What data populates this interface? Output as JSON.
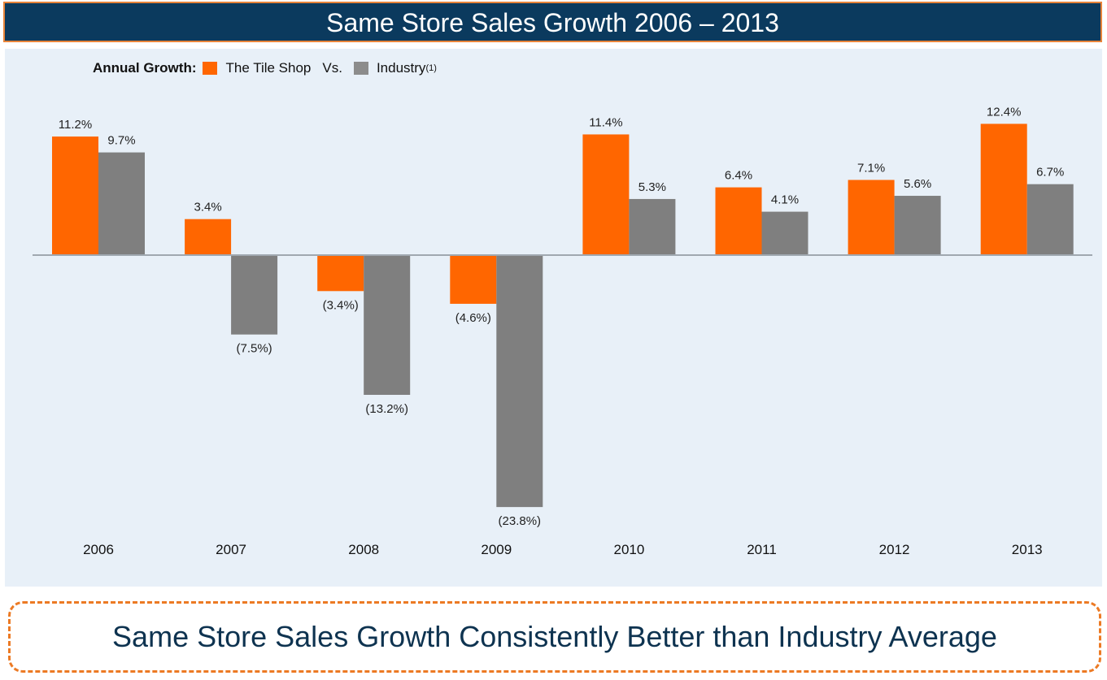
{
  "header": {
    "title": "Same Store Sales Growth 2006 –  2013"
  },
  "legend": {
    "label": "Annual Growth:",
    "series1": "The Tile Shop",
    "vs": "Vs.",
    "series2": "Industry",
    "footnote_marker": "(1)"
  },
  "footer": {
    "text": "Same Store Sales Growth Consistently Better than Industry Average"
  },
  "colors": {
    "tile_shop": "#ff6600",
    "industry": "#7f7f7f",
    "axis": "#a0a8b0",
    "title_bg": "#0b3a5e",
    "panel_bg": "#e8f0f8",
    "accent_border": "#ec7a24"
  },
  "chart_data": {
    "type": "bar",
    "title": "Same Store Sales Growth 2006 –  2013",
    "xlabel": "",
    "ylabel": "",
    "categories": [
      "2006",
      "2007",
      "2008",
      "2009",
      "2010",
      "2011",
      "2012",
      "2013"
    ],
    "series": [
      {
        "name": "The Tile Shop",
        "values": [
          11.2,
          3.4,
          -3.4,
          -4.6,
          11.4,
          6.4,
          7.1,
          12.4
        ],
        "labels": [
          "11.2%",
          "3.4%",
          "(3.4%)",
          "(4.6%)",
          "11.4%",
          "6.4%",
          "7.1%",
          "12.4%"
        ]
      },
      {
        "name": "Industry",
        "values": [
          9.7,
          -7.5,
          -13.2,
          -23.8,
          5.3,
          4.1,
          5.6,
          6.7
        ],
        "labels": [
          "9.7%",
          "(7.5%)",
          "(13.2%)",
          "(23.8%)",
          "5.3%",
          "4.1%",
          "5.6%",
          "6.7%"
        ]
      }
    ],
    "ylim": [
      -23.8,
      12.4
    ],
    "grid": false,
    "legend_position": "top-left"
  }
}
